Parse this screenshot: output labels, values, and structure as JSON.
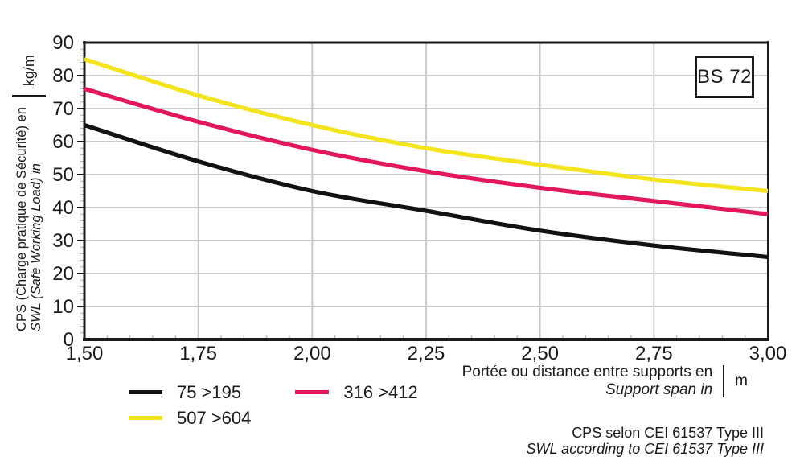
{
  "labels": {
    "badge": "BS 72",
    "y_axis_line1": "CPS (Charge pratique de Sécurité) en",
    "y_axis_line2": "SWL (Safe Working Load) in",
    "y_unit": "kg/m",
    "x_axis_line1": "Portée ou distance entre supports en",
    "x_axis_line2": "Support span in",
    "x_unit": "m",
    "footer_line1": "CPS selon CEI 61537 Type III",
    "footer_line2": "SWL according to CEI 61537 Type III"
  },
  "chart_data": {
    "type": "line",
    "title": "",
    "xlabel": "Portée ou distance entre supports en / Support span in (m)",
    "ylabel": "CPS (Charge pratique de Sécurité) en / SWL (Safe Working Load) in (kg/m)",
    "xlim": [
      1.5,
      3.0
    ],
    "ylim": [
      0,
      90
    ],
    "x": [
      1.5,
      1.75,
      2.0,
      2.25,
      2.5,
      2.75,
      3.0
    ],
    "x_tick_labels": [
      "1,50",
      "1,75",
      "2,00",
      "2,25",
      "2,50",
      "2,75",
      "3,00"
    ],
    "y_ticks": [
      0,
      10,
      20,
      30,
      40,
      50,
      60,
      70,
      80,
      90
    ],
    "x_minor_step": 0.05,
    "y_minor_step": 2,
    "grid": true,
    "legend_position": "bottom-left",
    "series": [
      {
        "name": "75 >195",
        "color": "#121212",
        "values": [
          65,
          54,
          45,
          39,
          33,
          28.5,
          25
        ]
      },
      {
        "name": "316 >412",
        "color": "#e2175e",
        "values": [
          76,
          66,
          57.5,
          51,
          46,
          42,
          38
        ]
      },
      {
        "name": "507 >604",
        "color": "#f4e41e",
        "values": [
          85,
          74,
          65,
          58,
          53,
          48.5,
          45
        ]
      }
    ],
    "colors": {
      "ink": "#1a1a1a",
      "grid": "#c6c6c6",
      "minor_tick": "#a9a9a9"
    }
  }
}
